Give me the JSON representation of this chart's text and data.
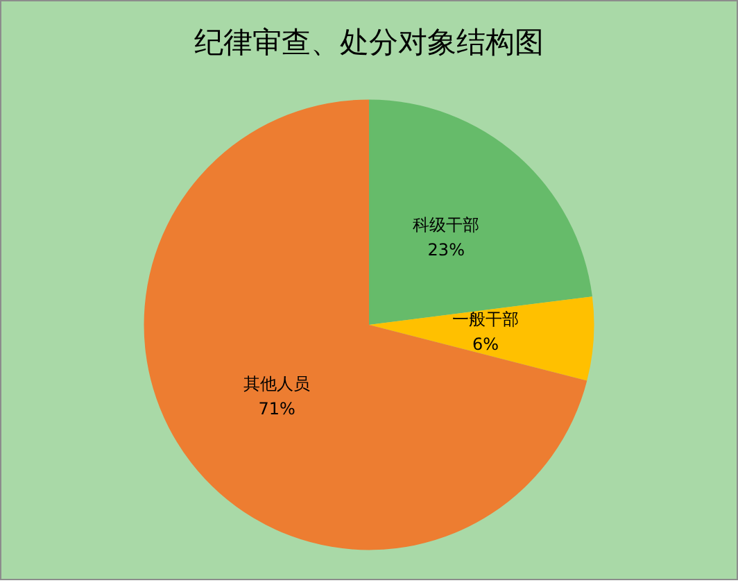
{
  "chart_data": {
    "type": "pie",
    "title": "纪律审查、处分对象结构图",
    "categories": [
      "科级干部",
      "一般干部",
      "其他人员"
    ],
    "values": [
      23,
      6,
      71
    ],
    "colors": [
      "#66bb6a",
      "#ffc000",
      "#ed7d31"
    ],
    "value_labels": [
      "23%",
      "6%",
      "71%"
    ],
    "legend": false
  }
}
